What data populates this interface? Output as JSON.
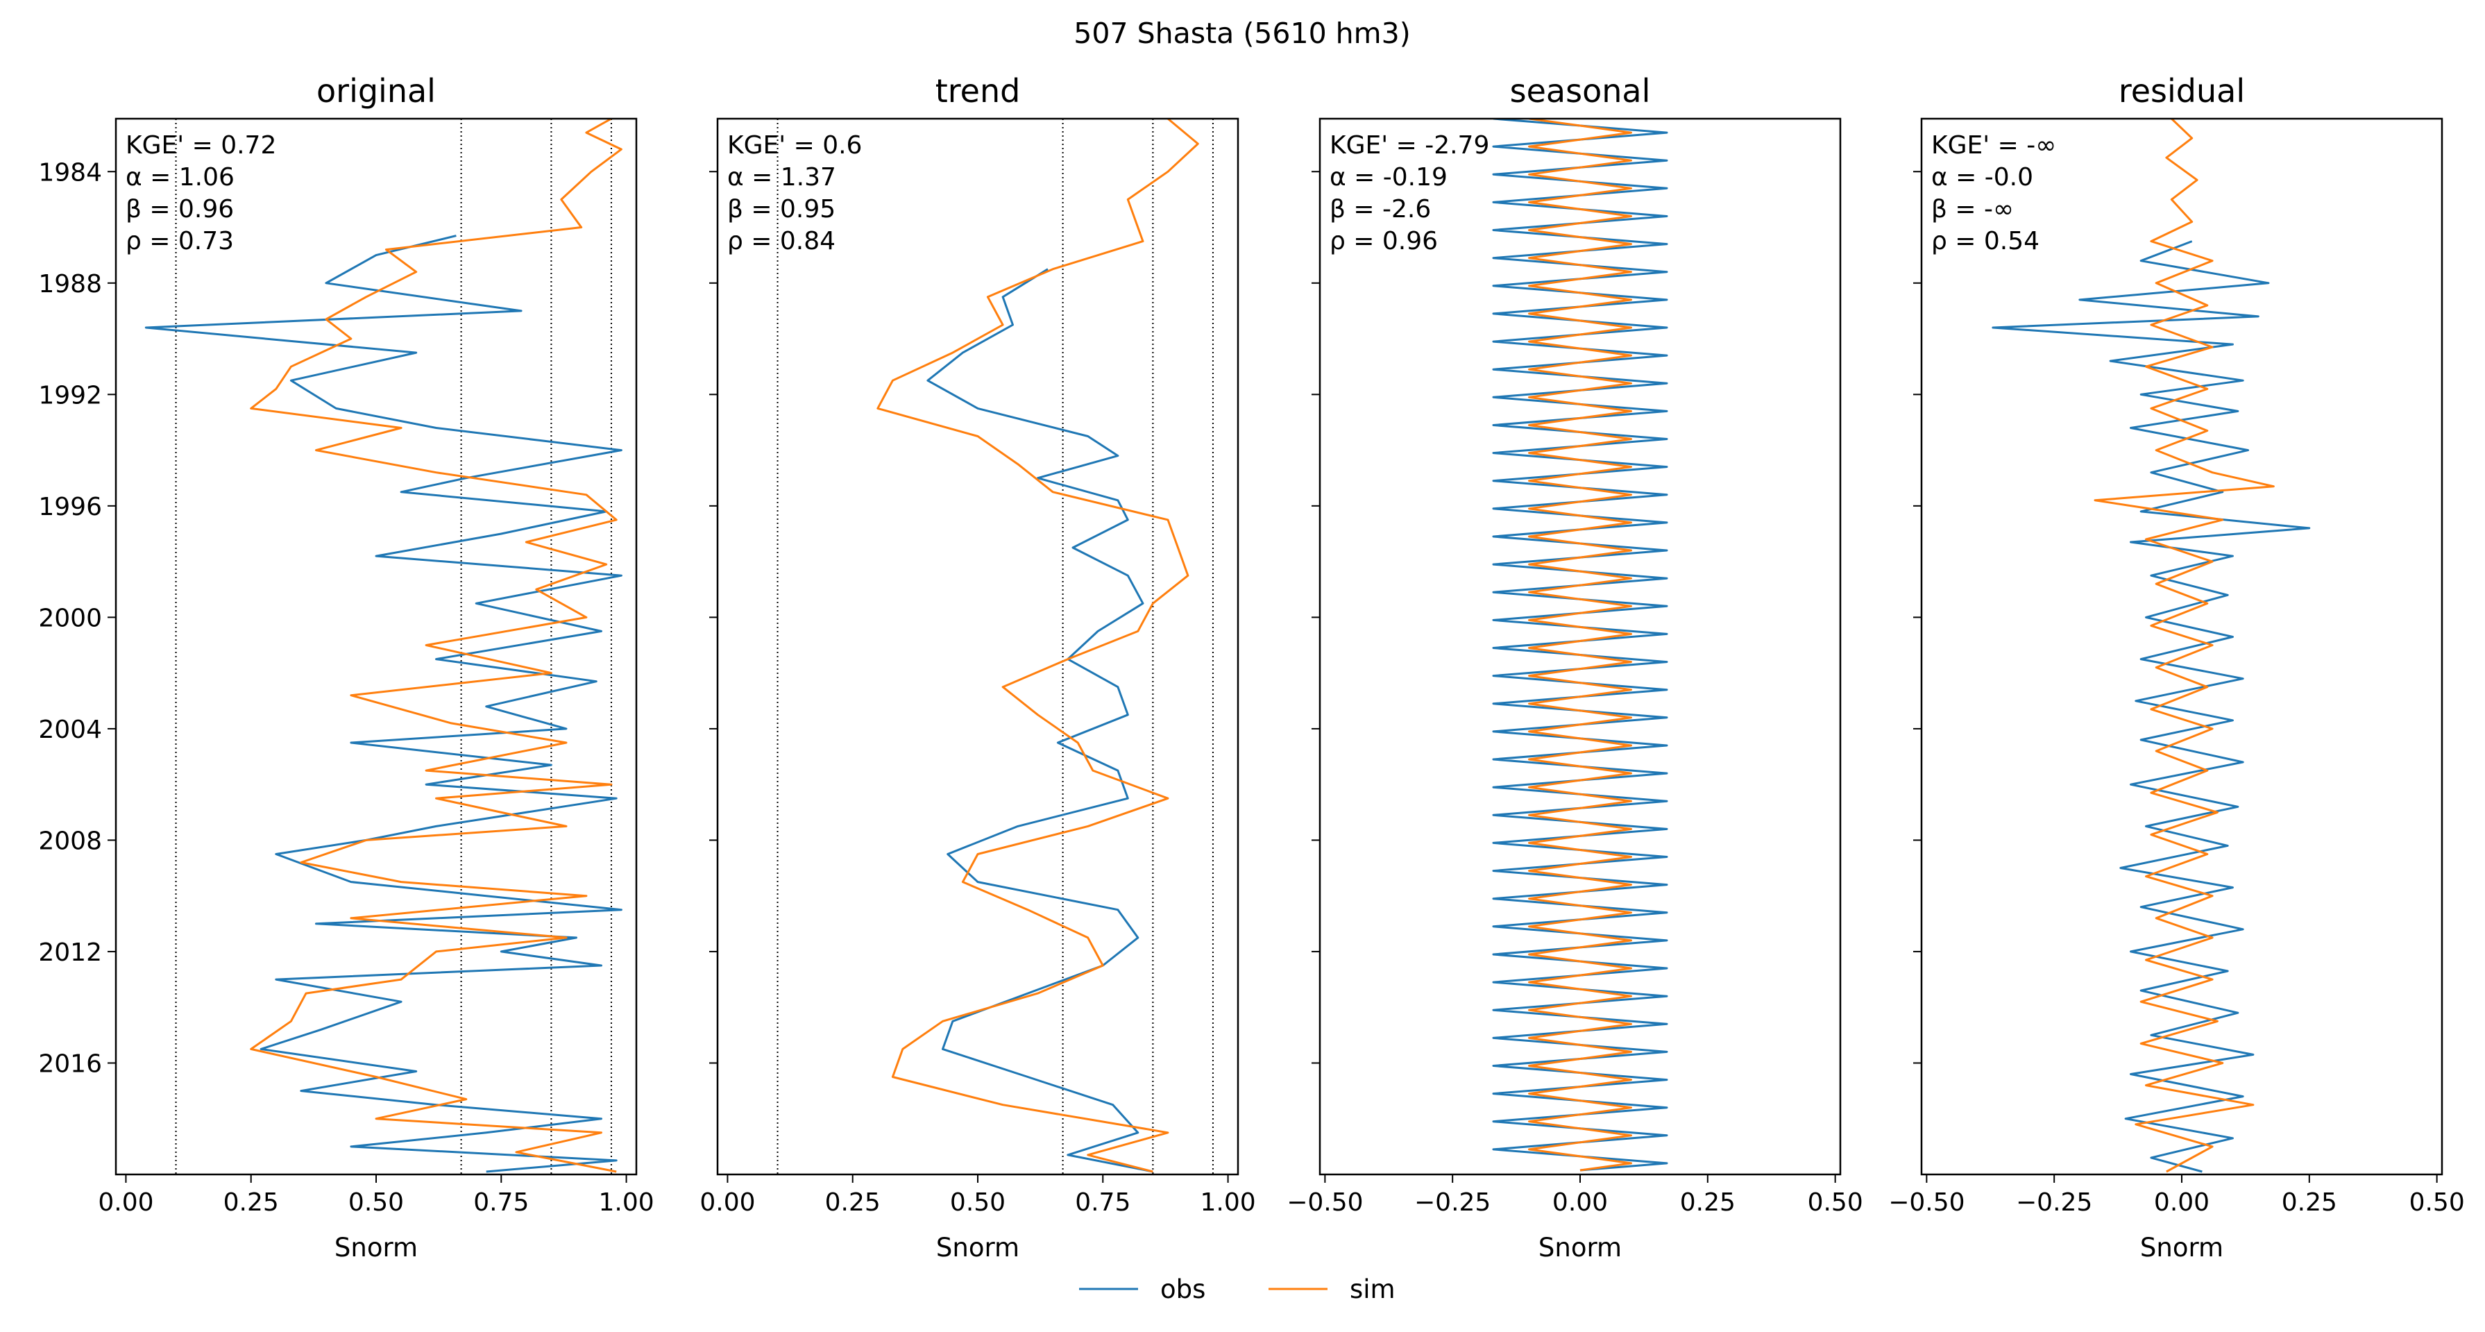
{
  "figure": {
    "title": "507  Shasta (5610 hm3)"
  },
  "legend": {
    "entries": [
      {
        "name": "obs",
        "color": "#1f77b4"
      },
      {
        "name": "sim",
        "color": "#ff7f0e"
      }
    ],
    "placement": "bottom-center"
  },
  "chart_data": [
    {
      "type": "line",
      "title": "original",
      "xlabel": "Snorm",
      "xlim": [
        -0.02,
        1.02
      ],
      "xticks": [
        "0.00",
        "0.25",
        "0.50",
        "0.75",
        "1.00"
      ],
      "ylim": [
        1982.1,
        2020.0
      ],
      "yticks": [
        "1984",
        "1988",
        "1992",
        "1996",
        "2000",
        "2004",
        "2008",
        "2012",
        "2016"
      ],
      "vlines": [
        0.1,
        0.67,
        0.85,
        0.97
      ],
      "metrics": {
        "kge": "KGE' = 0.72",
        "alpha": "α = 1.06",
        "beta": "β = 0.96",
        "rho": "ρ = 0.73"
      },
      "series": [
        {
          "name": "obs",
          "color": "#1f77b4",
          "y": [
            1986.3,
            1987.0,
            1988.0,
            1989.0,
            1989.6,
            1990.5,
            1991.5,
            1992.5,
            1993.2,
            1994.0,
            1995.0,
            1995.5,
            1996.2,
            1997.0,
            1997.8,
            1998.5,
            1999.5,
            2000.5,
            2001.5,
            2002.3,
            2003.2,
            2004.0,
            2004.5,
            2005.3,
            2006.0,
            2006.5,
            2007.5,
            2008.0,
            2008.5,
            2009.5,
            2010.0,
            2010.5,
            2011.0,
            2011.5,
            2012.0,
            2012.5,
            2013.0,
            2013.8,
            2014.8,
            2015.5,
            2016.3,
            2017.0,
            2017.5,
            2018.0,
            2018.5,
            2019.0,
            2019.5,
            2019.9
          ],
          "x": [
            0.66,
            0.5,
            0.4,
            0.79,
            0.04,
            0.58,
            0.33,
            0.42,
            0.62,
            0.99,
            0.68,
            0.55,
            0.96,
            0.75,
            0.5,
            0.99,
            0.7,
            0.95,
            0.62,
            0.94,
            0.72,
            0.88,
            0.45,
            0.85,
            0.6,
            0.98,
            0.62,
            0.48,
            0.3,
            0.45,
            0.72,
            0.99,
            0.38,
            0.9,
            0.75,
            0.95,
            0.3,
            0.55,
            0.39,
            0.27,
            0.58,
            0.35,
            0.62,
            0.95,
            0.72,
            0.45,
            0.98,
            0.72
          ]
        },
        {
          "name": "sim",
          "color": "#ff7f0e",
          "y": [
            1982.1,
            1982.6,
            1983.2,
            1984.0,
            1985.0,
            1986.0,
            1986.8,
            1987.6,
            1988.5,
            1989.3,
            1990.0,
            1991.0,
            1991.8,
            1992.5,
            1993.2,
            1994.0,
            1994.8,
            1995.6,
            1996.5,
            1997.3,
            1998.1,
            1999.0,
            2000.0,
            2001.0,
            2002.0,
            2002.8,
            2003.8,
            2004.5,
            2005.5,
            2006.0,
            2006.5,
            2007.5,
            2008.0,
            2008.8,
            2009.5,
            2010.0,
            2010.8,
            2011.5,
            2012.0,
            2013.0,
            2013.5,
            2014.5,
            2015.5,
            2016.5,
            2017.3,
            2018.0,
            2018.5,
            2019.2,
            2019.9
          ],
          "x": [
            0.97,
            0.92,
            0.99,
            0.93,
            0.87,
            0.91,
            0.52,
            0.58,
            0.48,
            0.4,
            0.45,
            0.33,
            0.3,
            0.25,
            0.55,
            0.38,
            0.62,
            0.92,
            0.98,
            0.8,
            0.96,
            0.82,
            0.92,
            0.6,
            0.85,
            0.45,
            0.65,
            0.88,
            0.6,
            0.97,
            0.62,
            0.88,
            0.48,
            0.35,
            0.55,
            0.92,
            0.45,
            0.88,
            0.62,
            0.55,
            0.36,
            0.33,
            0.25,
            0.5,
            0.68,
            0.5,
            0.95,
            0.78,
            0.98
          ]
        }
      ]
    },
    {
      "type": "line",
      "title": "trend",
      "xlabel": "Snorm",
      "xlim": [
        -0.02,
        1.02
      ],
      "xticks": [
        "0.00",
        "0.25",
        "0.50",
        "0.75",
        "1.00"
      ],
      "ylim": [
        1982.1,
        2020.0
      ],
      "yticks": [],
      "vlines": [
        0.1,
        0.67,
        0.85,
        0.97
      ],
      "metrics": {
        "kge": "KGE' = 0.6",
        "alpha": "α = 1.37",
        "beta": "β = 0.95",
        "rho": "ρ = 0.84"
      },
      "series": [
        {
          "name": "obs",
          "color": "#1f77b4",
          "y": [
            1987.5,
            1988.5,
            1989.5,
            1990.5,
            1991.5,
            1992.5,
            1993.5,
            1994.2,
            1995.0,
            1995.8,
            1996.5,
            1997.5,
            1998.5,
            1999.5,
            2000.5,
            2001.5,
            2002.5,
            2003.5,
            2004.5,
            2005.5,
            2006.5,
            2007.5,
            2008.5,
            2009.5,
            2010.5,
            2011.5,
            2012.5,
            2013.5,
            2014.5,
            2015.5,
            2016.5,
            2017.5,
            2018.5,
            2019.3,
            2019.9
          ],
          "x": [
            0.64,
            0.55,
            0.57,
            0.47,
            0.4,
            0.5,
            0.72,
            0.78,
            0.62,
            0.78,
            0.8,
            0.69,
            0.8,
            0.83,
            0.74,
            0.68,
            0.78,
            0.8,
            0.66,
            0.78,
            0.8,
            0.58,
            0.44,
            0.5,
            0.78,
            0.82,
            0.75,
            0.6,
            0.45,
            0.43,
            0.6,
            0.77,
            0.82,
            0.68,
            0.85
          ]
        },
        {
          "name": "sim",
          "color": "#ff7f0e",
          "y": [
            1982.1,
            1983.0,
            1984.0,
            1985.0,
            1986.5,
            1987.5,
            1988.5,
            1989.5,
            1990.5,
            1991.5,
            1992.5,
            1993.5,
            1994.5,
            1995.5,
            1996.5,
            1997.5,
            1998.5,
            1999.5,
            2000.5,
            2001.5,
            2002.5,
            2003.5,
            2004.5,
            2005.5,
            2006.5,
            2007.5,
            2008.5,
            2009.5,
            2010.5,
            2011.5,
            2012.5,
            2013.5,
            2014.5,
            2015.5,
            2016.5,
            2017.5,
            2018.5,
            2019.3,
            2019.9
          ],
          "x": [
            0.88,
            0.94,
            0.88,
            0.8,
            0.83,
            0.65,
            0.52,
            0.55,
            0.45,
            0.33,
            0.3,
            0.5,
            0.58,
            0.65,
            0.88,
            0.9,
            0.92,
            0.85,
            0.82,
            0.68,
            0.55,
            0.62,
            0.7,
            0.73,
            0.88,
            0.72,
            0.5,
            0.47,
            0.6,
            0.72,
            0.75,
            0.62,
            0.43,
            0.35,
            0.33,
            0.55,
            0.88,
            0.72,
            0.85
          ]
        }
      ]
    },
    {
      "type": "line",
      "title": "seasonal",
      "xlabel": "Snorm",
      "xlim": [
        -0.51,
        0.51
      ],
      "xticks": [
        "−0.50",
        "−0.25",
        "0.00",
        "0.25",
        "0.50"
      ],
      "ylim": [
        1982.1,
        2020.0
      ],
      "yticks": [],
      "vlines": [],
      "metrics": {
        "kge": "KGE' = -2.79",
        "alpha": "α = -0.19",
        "beta": "β = -2.6",
        "rho": "ρ = 0.96"
      },
      "series": [
        {
          "name": "obs",
          "color": "#1f77b4",
          "amplitude": 0.17,
          "period_years": 1,
          "start": 1982.1,
          "end": 2020.0
        },
        {
          "name": "sim",
          "color": "#ff7f0e",
          "amplitude": 0.1,
          "period_years": 1,
          "start": 1982.1,
          "end": 2020.0
        }
      ]
    },
    {
      "type": "line",
      "title": "residual",
      "xlabel": "Snorm",
      "xlim": [
        -0.51,
        0.51
      ],
      "xticks": [
        "−0.50",
        "−0.25",
        "0.00",
        "0.25",
        "0.50"
      ],
      "ylim": [
        1982.1,
        2020.0
      ],
      "yticks": [],
      "vlines": [],
      "metrics": {
        "kge": "KGE' = -∞",
        "alpha": "α = -0.0",
        "beta": "β = -∞",
        "rho": "ρ = 0.54"
      },
      "series": [
        {
          "name": "obs",
          "color": "#1f77b4",
          "y": [
            1986.5,
            1987.2,
            1988.0,
            1988.6,
            1989.2,
            1989.6,
            1990.2,
            1990.8,
            1991.5,
            1992.0,
            1992.6,
            1993.2,
            1994.0,
            1994.8,
            1995.5,
            1996.2,
            1996.8,
            1997.3,
            1997.8,
            1998.5,
            1999.2,
            2000.0,
            2000.7,
            2001.5,
            2002.2,
            2003.0,
            2003.7,
            2004.4,
            2005.2,
            2006.0,
            2006.8,
            2007.5,
            2008.2,
            2009.0,
            2009.7,
            2010.4,
            2011.2,
            2012.0,
            2012.7,
            2013.4,
            2014.2,
            2015.0,
            2015.7,
            2016.4,
            2017.2,
            2018.0,
            2018.7,
            2019.4,
            2019.9
          ],
          "x": [
            0.02,
            -0.08,
            0.17,
            -0.2,
            0.15,
            -0.37,
            0.1,
            -0.14,
            0.12,
            -0.08,
            0.11,
            -0.1,
            0.13,
            -0.06,
            0.08,
            -0.08,
            0.25,
            -0.1,
            0.1,
            -0.06,
            0.09,
            -0.07,
            0.1,
            -0.08,
            0.12,
            -0.09,
            0.1,
            -0.08,
            0.12,
            -0.1,
            0.11,
            -0.07,
            0.09,
            -0.12,
            0.1,
            -0.08,
            0.12,
            -0.1,
            0.09,
            -0.08,
            0.11,
            -0.06,
            0.14,
            -0.1,
            0.12,
            -0.11,
            0.1,
            -0.06,
            0.04
          ]
        },
        {
          "name": "sim",
          "color": "#ff7f0e",
          "y": [
            1982.1,
            1982.8,
            1983.5,
            1984.3,
            1985.0,
            1985.8,
            1986.5,
            1987.2,
            1988.0,
            1988.8,
            1989.5,
            1990.3,
            1991.0,
            1991.8,
            1992.5,
            1993.3,
            1994.0,
            1994.8,
            1995.3,
            1995.8,
            1996.5,
            1997.2,
            1998.0,
            1998.8,
            1999.5,
            2000.3,
            2001.0,
            2001.8,
            2002.5,
            2003.3,
            2004.0,
            2004.8,
            2005.5,
            2006.3,
            2007.0,
            2007.8,
            2008.5,
            2009.3,
            2010.0,
            2010.8,
            2011.5,
            2012.3,
            2013.0,
            2013.8,
            2014.5,
            2015.3,
            2016.0,
            2016.8,
            2017.5,
            2018.2,
            2019.0,
            2019.9
          ],
          "x": [
            -0.02,
            0.02,
            -0.03,
            0.03,
            -0.02,
            0.02,
            -0.06,
            0.06,
            -0.05,
            0.05,
            -0.06,
            0.06,
            -0.07,
            0.05,
            -0.06,
            0.05,
            -0.05,
            0.06,
            0.18,
            -0.17,
            0.08,
            -0.07,
            0.06,
            -0.05,
            0.05,
            -0.06,
            0.06,
            -0.05,
            0.05,
            -0.06,
            0.06,
            -0.05,
            0.05,
            -0.06,
            0.07,
            -0.06,
            0.05,
            -0.07,
            0.06,
            -0.05,
            0.06,
            -0.07,
            0.06,
            -0.08,
            0.07,
            -0.08,
            0.08,
            -0.07,
            0.14,
            -0.09,
            0.06,
            -0.03
          ]
        }
      ]
    }
  ]
}
